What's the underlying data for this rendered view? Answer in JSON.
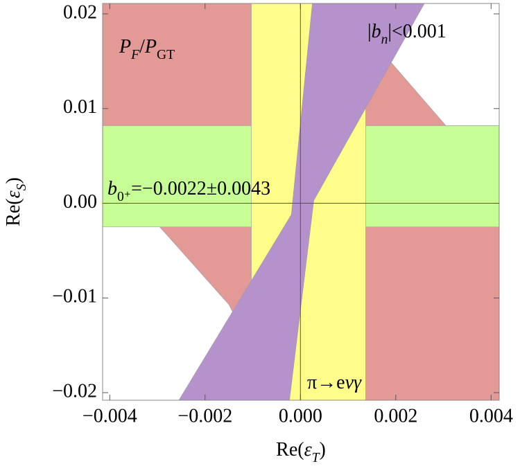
{
  "chart_data": {
    "type": "region",
    "x_label": [
      {
        "text": "Re("
      },
      {
        "text": "ε",
        "italic": true
      },
      {
        "text": "T",
        "italic": true,
        "sub": true
      },
      {
        "text": ")"
      }
    ],
    "y_label": [
      {
        "text": "Re("
      },
      {
        "text": "ε",
        "italic": true
      },
      {
        "text": "S",
        "italic": true,
        "sub": true
      },
      {
        "text": ")"
      }
    ],
    "xlim": [
      -0.00415,
      0.00417
    ],
    "ylim": [
      -0.0208,
      0.0211
    ],
    "xticks": [
      {
        "value": -0.004,
        "label": "−0.004"
      },
      {
        "value": -0.002,
        "label": "−0.002"
      },
      {
        "value": 0,
        "label": "0.000"
      },
      0.002,
      0.004
    ],
    "yticks": [
      {
        "value": -0.02,
        "label": "−0.02"
      },
      {
        "value": -0.01,
        "label": "−0.01"
      },
      {
        "value": 0,
        "label": "0.00"
      },
      0.01,
      0.02
    ],
    "regions": [
      {
        "name": [
          {
            "text": "P",
            "italic": true
          },
          {
            "text": "F",
            "italic": true,
            "sub": true
          },
          {
            "text": "/"
          },
          {
            "text": "P",
            "italic": true
          },
          {
            "text": "GT",
            "sub": true
          }
        ],
        "color": "#e39a96",
        "x": [
          -0.00415,
          0.00083,
          0.00305,
          0.00417,
          0.00417,
          -0.00048,
          -0.0015,
          -0.00295,
          -0.00415
        ],
        "y": [
          0.0211,
          0.0211,
          0.0082,
          0.0082,
          -0.0208,
          -0.0208,
          -0.0107,
          -0.0025,
          -0.0025
        ]
      },
      {
        "name": [
          {
            "text": "b",
            "italic": true
          },
          {
            "text": "0⁺",
            "sub": true
          },
          {
            "text": "=−0.0022±0.0043"
          }
        ],
        "color": "#c6fd94",
        "x": [
          -0.00415,
          0.00417,
          0.00417,
          -0.00415
        ],
        "y": [
          0.0082,
          0.0082,
          -0.0025,
          -0.0025
        ]
      },
      {
        "name": [
          {
            "text": "π→e"
          },
          {
            "text": "νγ",
            "italic": true
          }
        ],
        "color": "#fefd8a",
        "x": [
          -0.00103,
          0.00137,
          0.00137,
          -0.00103
        ],
        "y": [
          0.0211,
          0.0211,
          -0.0208,
          -0.0208
        ]
      },
      {
        "name": [
          {
            "text": "|"
          },
          {
            "text": "b",
            "italic": true
          },
          {
            "text": "n",
            "italic": true,
            "sub": true
          },
          {
            "text": "|<0.001"
          }
        ],
        "color": "#b592cc",
        "x": [
          -0.00255,
          -0.00019,
          0.00025,
          0.0026,
          0.00028,
          -0.00023
        ],
        "y": [
          -0.0208,
          -0.0012,
          0.0211,
          0.0211,
          0.0003,
          -0.0208
        ]
      }
    ]
  }
}
